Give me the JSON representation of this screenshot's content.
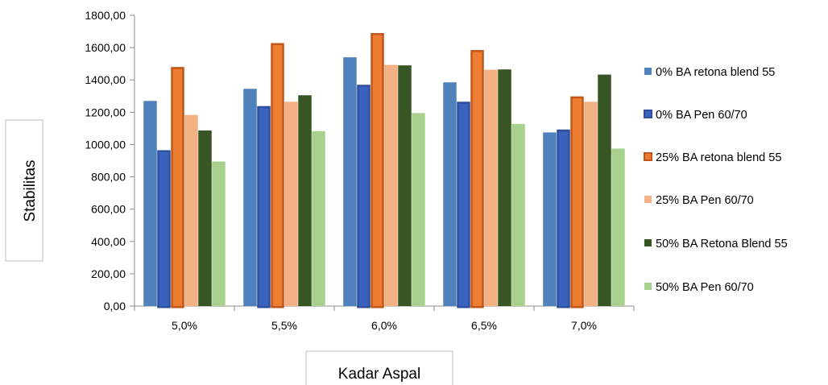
{
  "chart_data": {
    "type": "bar",
    "title": "",
    "xlabel": "Kadar Aspal",
    "ylabel": "Stabilitas",
    "ylim": [
      0,
      1800
    ],
    "yticks": [
      "0,00",
      "200,00",
      "400,00",
      "600,00",
      "800,00",
      "1000,00",
      "1200,00",
      "1400,00",
      "1600,00",
      "1800,00"
    ],
    "categories": [
      "5,0%",
      "5,5%",
      "6,0%",
      "6,5%",
      "7,0%"
    ],
    "legend_position": "right",
    "grid": false,
    "series": [
      {
        "name": "0% BA retona blend 55",
        "color": "#4F81BD",
        "values": [
          1270,
          1345,
          1540,
          1385,
          1075
        ]
      },
      {
        "name": "0% BA Pen 60/70",
        "color": "#3A63C0",
        "values": [
          965,
          1238,
          1370,
          1265,
          1093
        ]
      },
      {
        "name": "25% BA retona blend 55",
        "color": "#ED7D31",
        "values": [
          1480,
          1628,
          1690,
          1585,
          1298
        ]
      },
      {
        "name": "25% BA Pen 60/70",
        "color": "#F4B183",
        "values": [
          1183,
          1265,
          1493,
          1463,
          1265
        ]
      },
      {
        "name": "50% BA Retona Blend 55",
        "color": "#375623",
        "values": [
          1087,
          1305,
          1490,
          1465,
          1433
        ]
      },
      {
        "name": "50% BA Pen 60/70",
        "color": "#A9D18E",
        "values": [
          895,
          1083,
          1195,
          1128,
          975
        ]
      }
    ]
  }
}
